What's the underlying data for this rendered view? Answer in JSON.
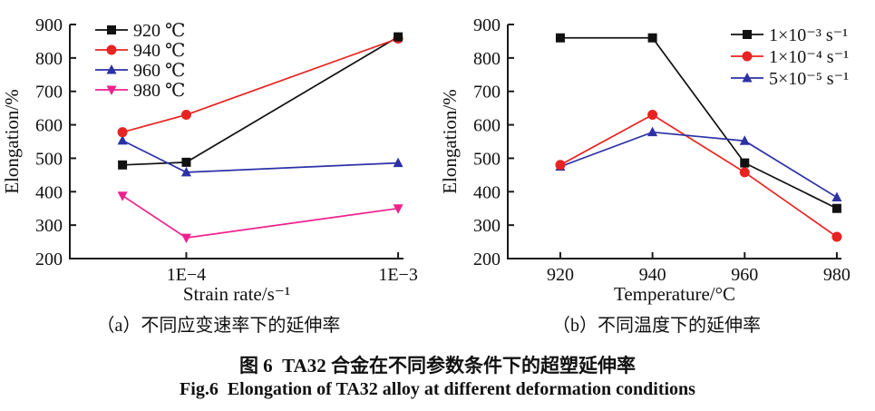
{
  "figure": {
    "caption_a": "（a）不同应变速率下的延伸率",
    "caption_b": "（b）不同温度下的延伸率",
    "title_zh": "图 6  TA32 合金在不同参数条件下的超塑延伸率",
    "title_en": "Fig.6  Elongation of TA32 alloy at different deformation conditions"
  },
  "colors": {
    "axis": "#1a1a1a",
    "black_series": "#111111",
    "red_series": "#e72421",
    "blue_series": "#2d31a6",
    "magenta_series": "#ef218e"
  },
  "chart_data": [
    {
      "type": "line",
      "title": "",
      "xlabel": "Strain rate/s⁻¹",
      "ylabel": "Elongation/%",
      "x_scale": "log10",
      "xlim": [
        2.82e-05,
        0.00106
      ],
      "ylim": [
        200,
        900
      ],
      "yticks": [
        200,
        300,
        400,
        500,
        600,
        700,
        800,
        900
      ],
      "xticks": [
        {
          "value": 0.0001,
          "label": "1E−4"
        },
        {
          "value": 0.001,
          "label": "1E−3"
        }
      ],
      "grid": false,
      "legend_position": "top-left",
      "series": [
        {
          "name": "920 ℃",
          "color": "#111111",
          "marker": "square",
          "x": [
            5e-05,
            0.0001,
            0.001
          ],
          "y": [
            480,
            488,
            863
          ]
        },
        {
          "name": "940 ℃",
          "color": "#e72421",
          "marker": "circle",
          "x": [
            5e-05,
            0.0001,
            0.001
          ],
          "y": [
            578,
            630,
            858
          ]
        },
        {
          "name": "960 ℃",
          "color": "#2d31a6",
          "marker": "triangle-up",
          "x": [
            5e-05,
            0.0001,
            0.001
          ],
          "y": [
            553,
            458,
            486
          ]
        },
        {
          "name": "980 ℃",
          "color": "#ef218e",
          "marker": "triangle-down",
          "x": [
            5e-05,
            0.0001,
            0.001
          ],
          "y": [
            388,
            262,
            350
          ]
        }
      ]
    },
    {
      "type": "line",
      "title": "",
      "xlabel": "Temperature/°C",
      "ylabel": "Elongation/%",
      "x_scale": "linear",
      "xlim": [
        908.6,
        981
      ],
      "ylim": [
        200,
        900
      ],
      "yticks": [
        200,
        300,
        400,
        500,
        600,
        700,
        800,
        900
      ],
      "xticks": [
        {
          "value": 920,
          "label": "920"
        },
        {
          "value": 940,
          "label": "940"
        },
        {
          "value": 960,
          "label": "960"
        },
        {
          "value": 980,
          "label": "980"
        }
      ],
      "grid": false,
      "legend_position": "top-right",
      "series": [
        {
          "name": "1×10⁻³ s⁻¹",
          "color": "#111111",
          "marker": "square",
          "x": [
            920,
            940,
            960,
            980
          ],
          "y": [
            860,
            860,
            486,
            350
          ]
        },
        {
          "name": "1×10⁻⁴ s⁻¹",
          "color": "#e72421",
          "marker": "circle",
          "x": [
            920,
            940,
            960,
            980
          ],
          "y": [
            480,
            630,
            458,
            265
          ]
        },
        {
          "name": "5×10⁻⁵ s⁻¹",
          "color": "#2d31a6",
          "marker": "triangle-up",
          "x": [
            920,
            940,
            960,
            980
          ],
          "y": [
            475,
            578,
            552,
            383
          ]
        }
      ]
    }
  ]
}
